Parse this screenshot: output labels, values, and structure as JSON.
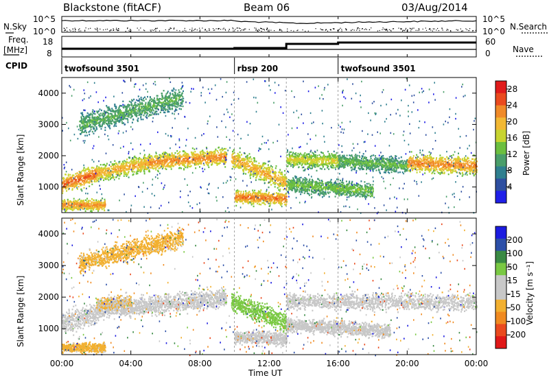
{
  "header": {
    "station": "Blackstone (fitACF)",
    "beam": "Beam 06",
    "date": "03/Aug/2014"
  },
  "top_panels": {
    "noise_left_label": "N.Sky",
    "noise_right_label": "N.Search",
    "noise_ticks": [
      "10^5",
      "10^0"
    ],
    "freq_left_label_1": "Freq.",
    "freq_left_label_2": "[MHz]",
    "freq_ticks": [
      "18",
      "8"
    ],
    "nave_label": "Nave",
    "nave_ticks": [
      "60",
      "0"
    ],
    "cpid_label": "CPID"
  },
  "cpid_segments": [
    {
      "label": "twofsound 3501",
      "start_h": 0,
      "end_h": 10
    },
    {
      "label": "rbsp 200",
      "start_h": 10,
      "end_h": 16
    },
    {
      "label": "twofsound 3501",
      "start_h": 16,
      "end_h": 24
    }
  ],
  "chart_data": [
    {
      "type": "heatmap",
      "name": "power-panel",
      "ylabel": "Slant Range [km]",
      "xlabel": "Time UT",
      "xlim_hours": [
        0,
        24
      ],
      "ylim": [
        180,
        4500
      ],
      "x_ticks": [
        "00:00",
        "04:00",
        "08:00",
        "12:00",
        "16:00",
        "20:00",
        "00:00"
      ],
      "y_ticks": [
        1000,
        2000,
        3000,
        4000
      ],
      "colorbar": {
        "label": "Power [dB]",
        "ticks": [
          4,
          8,
          12,
          16,
          20,
          24,
          28
        ],
        "range": [
          0,
          30
        ],
        "colors": [
          "#1f1fe8",
          "#2e4fa0",
          "#2f7f8f",
          "#4a9e6a",
          "#6cbf3f",
          "#c8d430",
          "#f2b833",
          "#f08a28",
          "#ea4a1e",
          "#e01b1b"
        ]
      },
      "bands": [
        {
          "start_h": 0.0,
          "end_h": 2.0,
          "center_start": 1100,
          "center_end": 1450,
          "width": 400,
          "level": 26
        },
        {
          "start_h": 2.0,
          "end_h": 5.0,
          "center_start": 1450,
          "center_end": 1800,
          "width": 380,
          "level": 22
        },
        {
          "start_h": 5.0,
          "end_h": 9.5,
          "center_start": 1800,
          "center_end": 2000,
          "width": 380,
          "level": 24
        },
        {
          "start_h": 9.8,
          "end_h": 13.0,
          "center_start": 1950,
          "center_end": 1150,
          "width": 450,
          "level": 22
        },
        {
          "start_h": 10.0,
          "end_h": 13.0,
          "center_start": 700,
          "center_end": 650,
          "width": 300,
          "level": 25
        },
        {
          "start_h": 13.0,
          "end_h": 16.0,
          "center_start": 1900,
          "center_end": 1850,
          "width": 350,
          "level": 18
        },
        {
          "start_h": 13.0,
          "end_h": 18.0,
          "center_start": 1100,
          "center_end": 900,
          "width": 350,
          "level": 14
        },
        {
          "start_h": 16.0,
          "end_h": 20.0,
          "center_start": 1850,
          "center_end": 1700,
          "width": 350,
          "level": 13
        },
        {
          "start_h": 20.0,
          "end_h": 24.0,
          "center_start": 1800,
          "center_end": 1700,
          "width": 420,
          "level": 24
        },
        {
          "start_h": 1.0,
          "end_h": 7.0,
          "center_start": 3000,
          "center_end": 3900,
          "width": 500,
          "level": 12
        },
        {
          "start_h": 0.0,
          "end_h": 2.5,
          "center_start": 450,
          "center_end": 450,
          "width": 250,
          "level": 24
        }
      ]
    },
    {
      "type": "heatmap",
      "name": "velocity-panel",
      "ylabel": "Slant Range [km]",
      "xlabel": "Time UT",
      "xlim_hours": [
        0,
        24
      ],
      "ylim": [
        180,
        4500
      ],
      "x_ticks": [
        "00:00",
        "04:00",
        "08:00",
        "12:00",
        "16:00",
        "20:00",
        "00:00"
      ],
      "y_ticks": [
        1000,
        2000,
        3000,
        4000
      ],
      "colorbar": {
        "label": "Velocity [m s⁻¹]",
        "ticks": [
          "200",
          "100",
          "50",
          "15",
          "-15",
          "-50",
          "-100",
          "-200"
        ],
        "range": [
          -250,
          250
        ],
        "colors": [
          "#1c1ce0",
          "#2c4fa8",
          "#3a8a44",
          "#7ac943",
          "#c8c8c8",
          "#c8c8c8",
          "#f2b030",
          "#f08a20",
          "#ea4a1e",
          "#e01818"
        ]
      },
      "bands": [
        {
          "start_h": 0.0,
          "end_h": 2.0,
          "center_start": 1200,
          "center_end": 1500,
          "width": 500,
          "value": 0
        },
        {
          "start_h": 2.0,
          "end_h": 9.5,
          "center_start": 1600,
          "center_end": 2000,
          "width": 420,
          "value": 0
        },
        {
          "start_h": 9.8,
          "end_h": 13.0,
          "center_start": 1900,
          "center_end": 1200,
          "width": 450,
          "value": 30
        },
        {
          "start_h": 10.0,
          "end_h": 13.0,
          "center_start": 750,
          "center_end": 700,
          "width": 300,
          "value": 0
        },
        {
          "start_h": 13.0,
          "end_h": 24.0,
          "center_start": 1900,
          "center_end": 1850,
          "width": 380,
          "value": 0
        },
        {
          "start_h": 13.0,
          "end_h": 19.0,
          "center_start": 1150,
          "center_end": 950,
          "width": 320,
          "value": 0
        },
        {
          "start_h": 1.0,
          "end_h": 7.0,
          "center_start": 3100,
          "center_end": 3900,
          "width": 450,
          "value": -60
        },
        {
          "start_h": 2.0,
          "end_h": 4.0,
          "center_start": 1800,
          "center_end": 1900,
          "width": 300,
          "value": -50
        },
        {
          "start_h": 0.0,
          "end_h": 2.5,
          "center_start": 420,
          "center_end": 420,
          "width": 220,
          "value": -60
        }
      ]
    }
  ]
}
